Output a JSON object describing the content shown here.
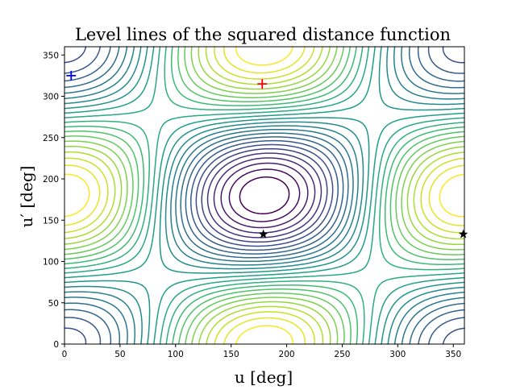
{
  "chart_data": {
    "type": "contour",
    "title": "Level lines of the squared distance function",
    "xlabel": "u [deg]",
    "ylabel": "u′ [deg]",
    "xlim": [
      0,
      360
    ],
    "ylim": [
      0,
      360
    ],
    "xticks": [
      0,
      50,
      100,
      150,
      200,
      250,
      300,
      350
    ],
    "yticks": [
      0,
      50,
      100,
      150,
      200,
      250,
      300,
      350
    ],
    "colormap": "viridis",
    "grid": false,
    "background": "#ffffff",
    "markers": [
      {
        "name": "max",
        "shape": "plus",
        "color": "#ff0000",
        "x": 178,
        "y": 315
      },
      {
        "name": "min",
        "shape": "plus",
        "color": "#0000ff",
        "x": 6,
        "y": 325
      },
      {
        "name": "saddle-1",
        "shape": "star",
        "color": "#000000",
        "x": 179,
        "y": 133
      },
      {
        "name": "saddle-2",
        "shape": "star",
        "color": "#000000",
        "x": 359,
        "y": 133
      }
    ],
    "levels": 26
  }
}
